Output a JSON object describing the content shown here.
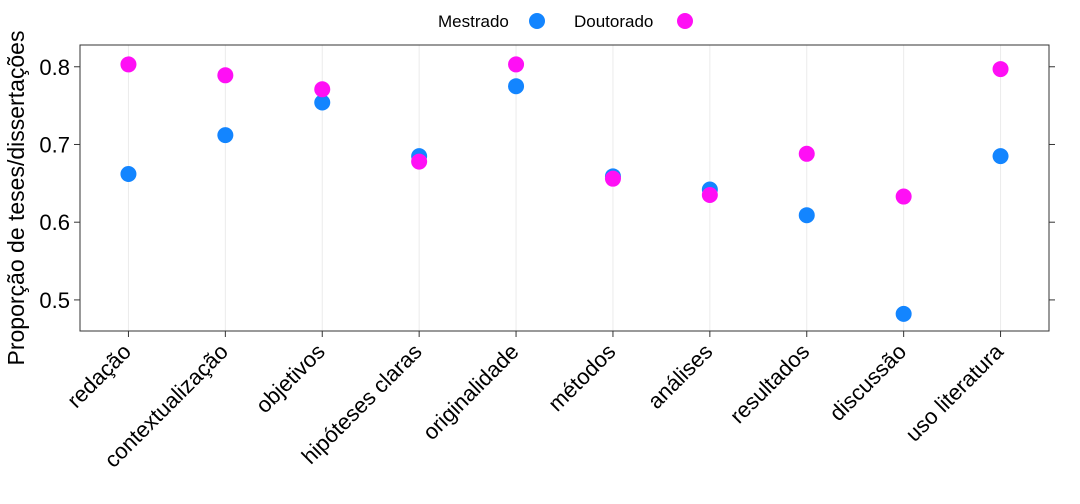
{
  "chart_data": {
    "type": "scatter",
    "categories": [
      "redação",
      "contextualização",
      "objetivos",
      "hipóteses claras",
      "originalidade",
      "métodos",
      "análises",
      "resultados",
      "discussão",
      "uso literatura"
    ],
    "series": [
      {
        "name": "Mestrado",
        "color": "#1385FF",
        "values": [
          0.662,
          0.712,
          0.754,
          0.685,
          0.775,
          0.659,
          0.642,
          0.609,
          0.482,
          0.685
        ]
      },
      {
        "name": "Doutorado",
        "color": "#FF0FF5",
        "values": [
          0.803,
          0.789,
          0.771,
          0.678,
          0.803,
          0.656,
          0.635,
          0.688,
          0.633,
          0.797
        ]
      }
    ],
    "ylabel": "Proporção de teses/dissertações",
    "xlabel": "",
    "ylim": [
      0.46,
      0.828
    ],
    "yticks": [
      "0.5",
      "0.6",
      "0.7",
      "0.8"
    ],
    "grid": true,
    "legend_position": "top"
  }
}
